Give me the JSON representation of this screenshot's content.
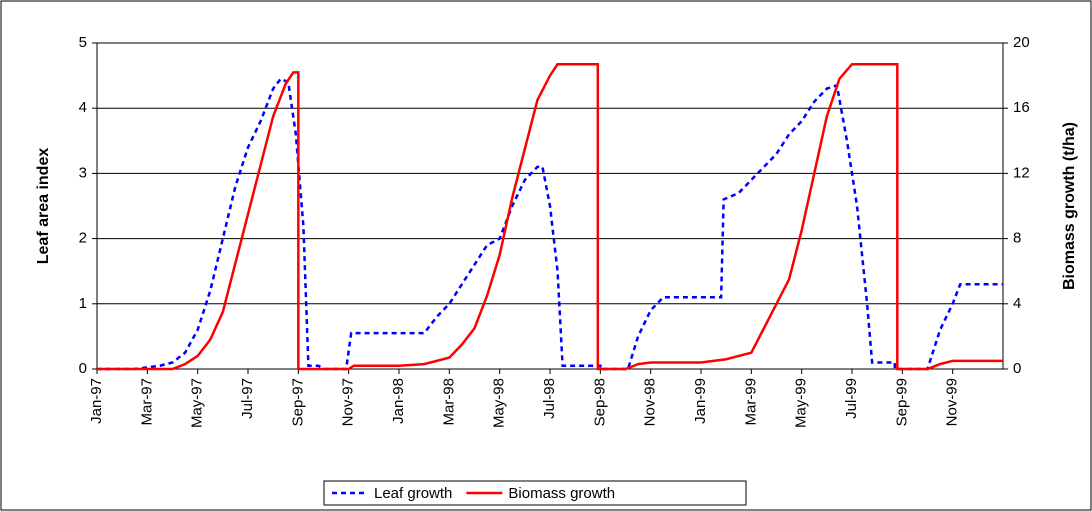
{
  "chart_data": {
    "type": "line",
    "y_label": "Leaf area index",
    "y2_label": "Biomass growth (t/ha)",
    "xlim": [
      0,
      36
    ],
    "xticks": [
      {
        "value": 0,
        "label": "Jan-97"
      },
      {
        "value": 2,
        "label": "Mar-97"
      },
      {
        "value": 4,
        "label": "May-97"
      },
      {
        "value": 6,
        "label": "Jul-97"
      },
      {
        "value": 8,
        "label": "Sep-97"
      },
      {
        "value": 10,
        "label": "Nov-97"
      },
      {
        "value": 12,
        "label": "Jan-98"
      },
      {
        "value": 14,
        "label": "Mar-98"
      },
      {
        "value": 16,
        "label": "May-98"
      },
      {
        "value": 18,
        "label": "Jul-98"
      },
      {
        "value": 20,
        "label": "Sep-98"
      },
      {
        "value": 22,
        "label": "Nov-98"
      },
      {
        "value": 24,
        "label": "Jan-99"
      },
      {
        "value": 26,
        "label": "Mar-99"
      },
      {
        "value": 28,
        "label": "May-99"
      },
      {
        "value": 30,
        "label": "Jul-99"
      },
      {
        "value": 32,
        "label": "Sep-99"
      },
      {
        "value": 34,
        "label": "Nov-99"
      }
    ],
    "ylim": [
      0,
      5
    ],
    "yticks": [
      0,
      1,
      2,
      3,
      4,
      5
    ],
    "y2lim": [
      0,
      20
    ],
    "y2ticks": [
      0,
      4,
      8,
      12,
      16,
      20
    ],
    "grid": true,
    "legend": "bottom",
    "series": [
      {
        "name": "Leaf growth",
        "color": "#0000ff",
        "dash": true,
        "x": [
          0,
          1.5,
          2.5,
          3,
          3.5,
          4,
          4.5,
          5,
          5.5,
          6,
          6.5,
          7,
          7.3,
          7.6,
          7.9,
          8.2,
          8.4,
          8.8,
          9,
          9.9,
          10.1,
          13,
          13.5,
          14,
          14.5,
          15,
          15.5,
          16,
          16.5,
          17,
          17.5,
          17.7,
          18,
          18.3,
          18.5,
          20,
          20,
          21.1,
          21.5,
          22,
          22.5,
          24.8,
          24.9,
          25.5,
          26,
          26.5,
          27,
          27.5,
          28,
          28.5,
          29,
          29.4,
          29.8,
          30.2,
          30.6,
          30.8,
          31.7,
          31.7,
          33,
          33.5,
          34,
          34.3,
          36
        ],
        "values": [
          0,
          0,
          0.05,
          0.1,
          0.25,
          0.6,
          1.2,
          2,
          2.8,
          3.4,
          3.8,
          4.3,
          4.45,
          4.4,
          3.6,
          2.2,
          0.05,
          0.05,
          0,
          0,
          0.55,
          0.55,
          0.8,
          1,
          1.3,
          1.6,
          1.9,
          2,
          2.5,
          2.9,
          3.1,
          3.1,
          2.5,
          1.5,
          0.05,
          0.05,
          0,
          0,
          0.5,
          0.9,
          1.1,
          1.1,
          2.6,
          2.7,
          2.9,
          3.1,
          3.3,
          3.6,
          3.8,
          4.1,
          4.3,
          4.35,
          3.5,
          2.5,
          1,
          0.1,
          0.1,
          0,
          0,
          0.6,
          1,
          1.3,
          1.3
        ]
      },
      {
        "name": "Biomass growth",
        "color": "#ff0000",
        "axis": "y2",
        "x": [
          0,
          3,
          3.5,
          4,
          4.5,
          5,
          5.5,
          6,
          6.5,
          7,
          7.5,
          7.8,
          8,
          8,
          10,
          10.2,
          12,
          13,
          14,
          14.5,
          15,
          15.5,
          16,
          16.5,
          17,
          17.5,
          18,
          18.3,
          19.9,
          19.9,
          21,
          21.5,
          22,
          24,
          25,
          26,
          26.5,
          27,
          27.5,
          28,
          28.5,
          29,
          29.5,
          30,
          31.8,
          31.8,
          33,
          33.5,
          34,
          36
        ],
        "values": [
          0,
          0,
          0.3,
          0.8,
          1.8,
          3.5,
          6.5,
          9.5,
          12.5,
          15.5,
          17.5,
          18.2,
          18.2,
          0,
          0,
          0.2,
          0.2,
          0.3,
          0.7,
          1.5,
          2.5,
          4.5,
          7,
          10.5,
          13.5,
          16.5,
          18,
          18.7,
          18.7,
          0,
          0,
          0.3,
          0.4,
          0.4,
          0.6,
          1,
          2.5,
          4,
          5.5,
          8.5,
          12,
          15.5,
          17.8,
          18.7,
          18.7,
          0,
          0,
          0.3,
          0.5,
          0.5
        ]
      }
    ]
  }
}
